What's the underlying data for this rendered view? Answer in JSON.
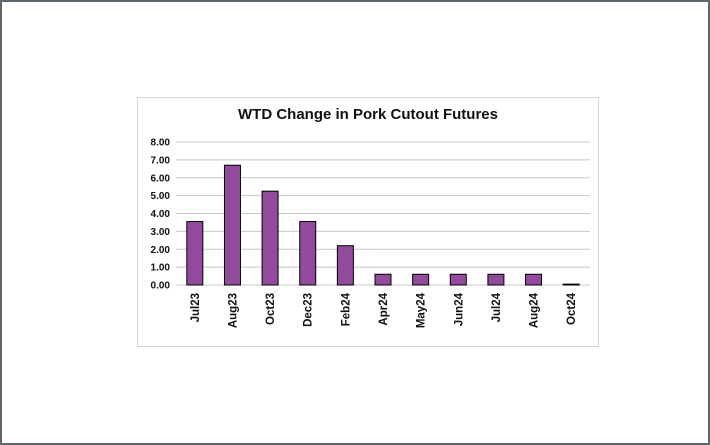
{
  "chart_data": {
    "type": "bar",
    "title": "WTD Change in Pork Cutout Futures",
    "xlabel": "",
    "ylabel": "",
    "categories": [
      "Jul23",
      "Aug23",
      "Oct23",
      "Dec23",
      "Feb24",
      "Apr24",
      "May24",
      "Jun24",
      "Jul24",
      "Aug24",
      "Oct24"
    ],
    "values": [
      3.55,
      6.7,
      5.25,
      3.55,
      2.2,
      0.6,
      0.6,
      0.6,
      0.6,
      0.6,
      0.05
    ],
    "ylim": [
      0,
      8
    ],
    "yticks": [
      "0.00",
      "1.00",
      "2.00",
      "3.00",
      "4.00",
      "5.00",
      "6.00",
      "7.00",
      "8.00"
    ],
    "grid": true,
    "legend": "none",
    "colors": {
      "bar": "#924b9c",
      "bar_edge": "#000000",
      "grid": "#c8c8c8"
    }
  }
}
